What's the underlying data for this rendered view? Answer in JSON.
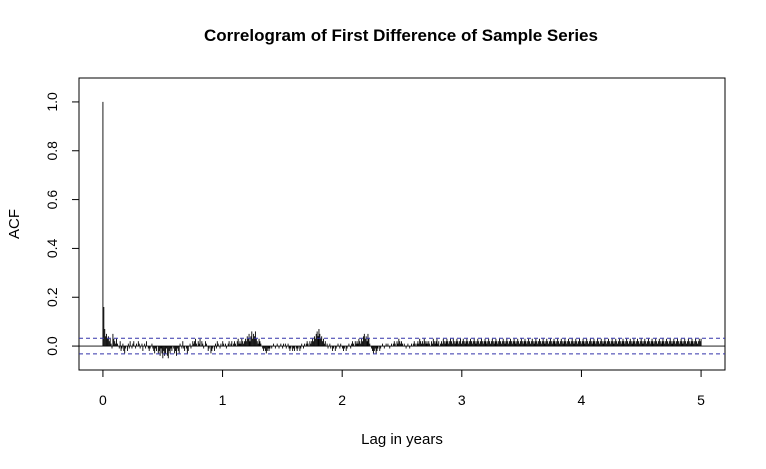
{
  "chart_data": {
    "type": "bar",
    "title": "Correlogram of First Difference of Sample Series",
    "xlabel": "Lag in years",
    "ylabel": "ACF",
    "xlim": [
      -0.2,
      5.2
    ],
    "ylim": [
      -0.098,
      1.098
    ],
    "x_ticks": [
      "0",
      "1",
      "2",
      "3",
      "4",
      "5"
    ],
    "y_ticks": [
      "0.0",
      "0.2",
      "0.4",
      "0.6",
      "0.8",
      "1.0"
    ],
    "confidence_band": [
      -0.032,
      0.032
    ],
    "zero_line": 0,
    "grid": false,
    "colors": {
      "bars": "#000000",
      "band": "#3333aa",
      "frame": "#000000"
    },
    "lag_step": 0.0077,
    "series": [
      {
        "x_start": 0,
        "x_end": 5,
        "values": [
          1.0,
          0.16,
          0.07,
          0.04,
          0.05,
          0.03,
          0.04,
          0.02,
          0.03,
          0.01,
          -0.01,
          0.05,
          0.03,
          0.02,
          0.01,
          0.03,
          0.01,
          0.0,
          -0.01,
          0.02,
          -0.02,
          -0.01,
          0.01,
          -0.02,
          -0.03,
          -0.01,
          0.0,
          -0.02,
          0.01,
          -0.01,
          0.02,
          0.0,
          -0.01,
          0.01,
          0.02,
          0.0,
          -0.01,
          0.01,
          0.0,
          0.02,
          0.01,
          -0.01,
          0.0,
          0.01,
          -0.02,
          0.0,
          0.01,
          -0.01,
          0.02,
          0.0,
          -0.01,
          -0.02,
          -0.01,
          0.0,
          0.01,
          -0.01,
          -0.02,
          -0.03,
          -0.01,
          -0.02,
          0.0,
          -0.03,
          -0.02,
          -0.04,
          -0.01,
          -0.03,
          -0.05,
          -0.02,
          -0.04,
          -0.03,
          -0.01,
          -0.04,
          -0.05,
          -0.02,
          -0.03,
          -0.01,
          -0.02,
          0.0,
          -0.01,
          -0.03,
          -0.02,
          -0.04,
          -0.01,
          -0.02,
          -0.03,
          0.01,
          0.0,
          -0.01,
          0.02,
          -0.01,
          -0.02,
          0.0,
          -0.01,
          -0.03,
          -0.02,
          0.0,
          0.01,
          -0.01,
          0.0,
          0.02,
          0.01,
          0.02,
          0.03,
          0.01,
          0.0,
          0.02,
          0.01,
          0.03,
          0.0,
          0.02,
          0.01,
          -0.01,
          0.0,
          0.02,
          0.01,
          0.0,
          -0.02,
          -0.01,
          0.0,
          -0.03,
          -0.02,
          -0.01,
          0.0,
          -0.02,
          0.01,
          -0.01,
          0.02,
          0.01,
          0.0,
          -0.01,
          0.01,
          0.0,
          0.02,
          0.01,
          0.0,
          0.01,
          -0.01,
          0.0,
          0.01,
          0.02,
          0.0,
          0.01,
          0.02,
          0.0,
          0.01,
          0.02,
          0.01,
          0.0,
          0.02,
          0.03,
          0.01,
          0.02,
          0.01,
          0.03,
          0.02,
          0.01,
          0.02,
          0.03,
          0.02,
          0.04,
          0.03,
          0.05,
          0.02,
          0.04,
          0.06,
          0.03,
          0.05,
          0.04,
          0.06,
          0.03,
          0.02,
          0.01,
          0.03,
          0.02,
          0.01,
          0.0,
          -0.01,
          -0.02,
          -0.01,
          -0.02,
          -0.03,
          -0.02,
          -0.01,
          -0.02,
          -0.01,
          0.0,
          -0.01,
          0.0,
          0.01,
          0.0,
          -0.01,
          0.0,
          0.01,
          0.0,
          -0.01,
          0.0,
          0.01,
          0.0,
          -0.01,
          0.01,
          0.0,
          0.01,
          -0.01,
          0.0,
          0.01,
          -0.01,
          -0.02,
          -0.01,
          0.0,
          -0.02,
          -0.01,
          -0.02,
          0.0,
          -0.01,
          -0.02,
          -0.01,
          0.0,
          -0.02,
          -0.01,
          0.01,
          0.0,
          -0.01,
          0.01,
          0.0,
          0.01,
          0.02,
          0.01,
          0.0,
          0.02,
          0.01,
          0.02,
          0.03,
          0.02,
          0.04,
          0.03,
          0.05,
          0.06,
          0.04,
          0.07,
          0.05,
          0.03,
          0.04,
          0.02,
          0.03,
          0.01,
          0.02,
          0.0,
          0.01,
          -0.01,
          0.0,
          0.01,
          -0.01,
          0.0,
          -0.02,
          -0.01,
          0.0,
          -0.02,
          -0.01,
          0.0,
          0.01,
          0.0,
          -0.01,
          0.01,
          0.0,
          -0.01,
          -0.02,
          -0.01,
          0.0,
          -0.02,
          -0.01,
          0.0,
          0.01,
          0.0,
          -0.01,
          0.01,
          0.02,
          0.01,
          0.0,
          0.02,
          0.01,
          0.02,
          0.01,
          0.03,
          0.02,
          0.01,
          0.03,
          0.02,
          0.04,
          0.05,
          0.03,
          0.04,
          0.02,
          0.05,
          0.03,
          0.01,
          0.0,
          -0.01,
          -0.02,
          -0.03,
          -0.02,
          -0.01,
          -0.03,
          -0.02,
          -0.01,
          0.0,
          -0.02,
          -0.01,
          0.0,
          0.01,
          0.0,
          -0.01,
          0.0,
          0.01,
          0.0,
          0.01,
          0.0,
          -0.01,
          0.0,
          0.01,
          0.0,
          0.01,
          0.02,
          0.01,
          0.0,
          0.02,
          0.01,
          0.03,
          0.02,
          0.01,
          0.02,
          0.01,
          0.0,
          0.01,
          0.0,
          -0.01,
          0.0,
          0.01,
          0.0,
          -0.01,
          0.0,
          0.01,
          0.0,
          0.01,
          0.02,
          0.01,
          0.0,
          0.01,
          0.02,
          0.01,
          0.03,
          0.02,
          0.01,
          0.02,
          0.01,
          0.03,
          0.02,
          0.01,
          0.02,
          0.01,
          0.02,
          0.01,
          0.0,
          0.02,
          0.01,
          0.03,
          0.02,
          0.01,
          0.02,
          0.03,
          0.01,
          0.02,
          0.0,
          0.01,
          0.02,
          0.01,
          0.03,
          0.02,
          0.01,
          0.02,
          0.03,
          0.02,
          0.01,
          0.02,
          0.03,
          0.02,
          0.01,
          0.03,
          0.02,
          0.01,
          0.02,
          0.03,
          0.02,
          0.01,
          0.02,
          0.03,
          0.01,
          0.02,
          0.03,
          0.02,
          0.01,
          0.02,
          0.03,
          0.02,
          0.01,
          0.02,
          0.03,
          0.02,
          0.01,
          0.02,
          0.03,
          0.02,
          0.01,
          0.02,
          0.03,
          0.02,
          0.01,
          0.02,
          0.03,
          0.02,
          0.01,
          0.02,
          0.03,
          0.02,
          0.01,
          0.02,
          0.03,
          0.02,
          0.01,
          0.02,
          0.03,
          0.02,
          0.01,
          0.02,
          0.03,
          0.02,
          0.01,
          0.02,
          0.03,
          0.02,
          0.01,
          0.02,
          0.03,
          0.02,
          0.01,
          0.02,
          0.03,
          0.02,
          0.01,
          0.02,
          0.03,
          0.02,
          0.01,
          0.02,
          0.03,
          0.02,
          0.01,
          0.02,
          0.03,
          0.02,
          0.01,
          0.02,
          0.03,
          0.02,
          0.01,
          0.02,
          0.03,
          0.02,
          0.01,
          0.02,
          0.03,
          0.02,
          0.01,
          0.02,
          0.03,
          0.02,
          0.01,
          0.02,
          0.03,
          0.02,
          0.01,
          0.02,
          0.03,
          0.02,
          0.01,
          0.02,
          0.03,
          0.02,
          0.01,
          0.02,
          0.03,
          0.02,
          0.01,
          0.02,
          0.03,
          0.02,
          0.01,
          0.02,
          0.03,
          0.02,
          0.01,
          0.02,
          0.03,
          0.02,
          0.01,
          0.02,
          0.03,
          0.02,
          0.01,
          0.02,
          0.03,
          0.02,
          0.01,
          0.02,
          0.03,
          0.02,
          0.01,
          0.02,
          0.03,
          0.02,
          0.01,
          0.02,
          0.03,
          0.02,
          0.01,
          0.02,
          0.03,
          0.02,
          0.01,
          0.02,
          0.03,
          0.02,
          0.01,
          0.02,
          0.03,
          0.02,
          0.01,
          0.02,
          0.03,
          0.02,
          0.01,
          0.02,
          0.03,
          0.02,
          0.01,
          0.02,
          0.03,
          0.02,
          0.01,
          0.02,
          0.03,
          0.02,
          0.01,
          0.02,
          0.03,
          0.02,
          0.01,
          0.02,
          0.03,
          0.02,
          0.01,
          0.02,
          0.03,
          0.02,
          0.01,
          0.02,
          0.03,
          0.02,
          0.01,
          0.02,
          0.03,
          0.02,
          0.01,
          0.02,
          0.03,
          0.02,
          0.01,
          0.02,
          0.03,
          0.02,
          0.01,
          0.02,
          0.03,
          0.02,
          0.01,
          0.02,
          0.03,
          0.02,
          0.01,
          0.02,
          0.03,
          0.02,
          0.01,
          0.02,
          0.03,
          0.02,
          0.01,
          0.02,
          0.03,
          0.02,
          0.01,
          0.02,
          0.03,
          0.02,
          0.01,
          0.02,
          0.03,
          0.02,
          0.01,
          0.02,
          0.03,
          0.02,
          0.01,
          0.02,
          0.03,
          0.02,
          0.01,
          0.02,
          0.03,
          0.02,
          0.01,
          0.02,
          0.03,
          0.02,
          0.01,
          0.02,
          0.03,
          0.02,
          0.01,
          0.02,
          0.03,
          0.02,
          0.01,
          0.02,
          0.03,
          0.02,
          0.01,
          0.02,
          0.03,
          0.02,
          0.01,
          0.02,
          0.03,
          0.02,
          0.01,
          0.02,
          0.03,
          0.02,
          0.01,
          0.02,
          0.03,
          0.02,
          0.01,
          0.02,
          0.03,
          0.02,
          0.01,
          0.02,
          0.03,
          0.02,
          0.03
        ]
      }
    ]
  }
}
